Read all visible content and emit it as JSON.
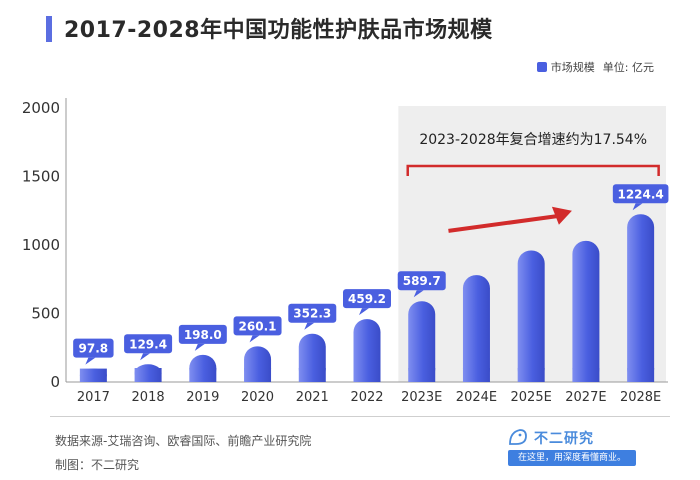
{
  "header": {
    "title": "2017-2028年中国功能性护肤品市场规模"
  },
  "legend": {
    "series_label": "市场规模",
    "unit_label": "单位: 亿元"
  },
  "chart_data": {
    "type": "bar",
    "title": "2017-2028年中国功能性护肤品市场规模",
    "categories": [
      "2017",
      "2018",
      "2019",
      "2020",
      "2021",
      "2022",
      "2023E",
      "2024E",
      "2025E",
      "2027E",
      "2028E"
    ],
    "values": [
      97.8,
      129.4,
      198.0,
      260.1,
      352.3,
      459.2,
      589.7,
      780,
      960,
      1030,
      1224.4
    ],
    "data_labels": [
      "97.8",
      "129.4",
      "198.0",
      "260.1",
      "352.3",
      "459.2",
      "589.7",
      "",
      "",
      "",
      "1224.4"
    ],
    "yticks": [
      "0",
      "500",
      "1000",
      "1500",
      "2000"
    ],
    "ylim": [
      0,
      2000
    ],
    "xlabel": "",
    "ylabel": "",
    "annotation": "2023-2028年复合增速约为17.54%",
    "colors": {
      "bar": "#4a5fe0",
      "bar_light": "#7f8ef0",
      "label_bg": "#4a5fe0",
      "bracket": "#d22b2b",
      "arrow": "#d22b2b",
      "highlight": "#eeeeee"
    }
  },
  "footer": {
    "source": "数据来源-艾瑞咨询、欧睿国际、前瞻产业研究院",
    "maker": "制图：不二研究",
    "brand_name": "不二研究",
    "brand_slogan": "在这里，用深度看懂商业。"
  }
}
